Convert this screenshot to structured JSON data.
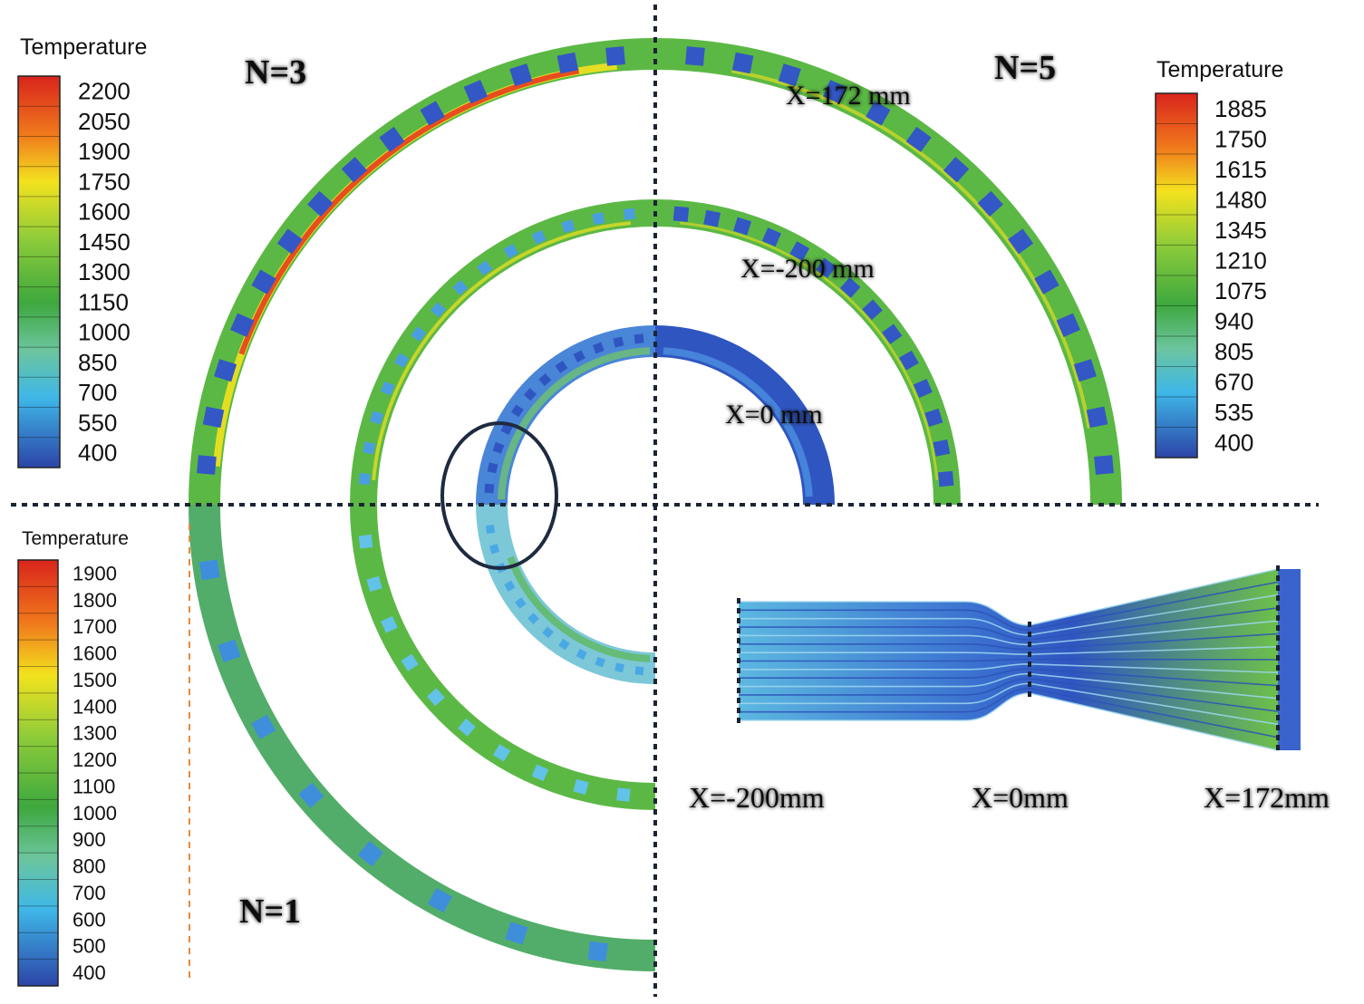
{
  "legends": [
    {
      "id": "n3",
      "title": "Temperature",
      "ticks": [
        "2200",
        "2050",
        "1900",
        "1750",
        "1600",
        "1450",
        "1300",
        "1150",
        "1000",
        "850",
        "700",
        "550",
        "400"
      ]
    },
    {
      "id": "n5",
      "title": "Temperature",
      "ticks": [
        "1885",
        "1750",
        "1615",
        "1480",
        "1345",
        "1210",
        "1075",
        "940",
        "805",
        "670",
        "535",
        "400"
      ]
    },
    {
      "id": "n1",
      "title": "Temperature",
      "ticks": [
        "1900",
        "1800",
        "1700",
        "1600",
        "1500",
        "1400",
        "1300",
        "1200",
        "1100",
        "1000",
        "900",
        "800",
        "700",
        "600",
        "500",
        "400"
      ]
    }
  ],
  "quadrant_labels": {
    "n3": "N=3",
    "n5": "N=5",
    "n1": "N=1"
  },
  "ring_labels": {
    "x172": "X=172 mm",
    "xm200": "X=-200 mm",
    "x0": "X=0 mm"
  },
  "section_labels": {
    "xm200": "X=-200mm",
    "x0": "X=0mm",
    "x172": "X=172mm"
  },
  "colors": {
    "ring_green": "#5cb845",
    "ring_blue": "#4a86d8",
    "ring_deep": "#2f56c0",
    "ring_cyan": "#62c2e8",
    "hot_red": "#e8351e",
    "hot_yellow": "#f3e21e",
    "hole": "#3357c4",
    "nozzle": "#3a64cc"
  }
}
